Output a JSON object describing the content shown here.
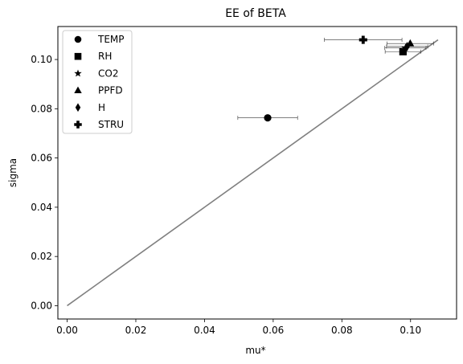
{
  "chart_data": {
    "type": "scatter",
    "title": "EE of BETA",
    "xlabel": "mu*",
    "ylabel": "sigma",
    "xlim": [
      -0.0027,
      0.1134
    ],
    "ylim": [
      -0.0054,
      0.1134
    ],
    "xticks": [
      0.0,
      0.02,
      0.04,
      0.06,
      0.08,
      0.1
    ],
    "xtick_labels": [
      "0.00",
      "0.02",
      "0.04",
      "0.06",
      "0.08",
      "0.10"
    ],
    "yticks": [
      0.0,
      0.02,
      0.04,
      0.06,
      0.08,
      0.1
    ],
    "ytick_labels": [
      "0.00",
      "0.02",
      "0.04",
      "0.06",
      "0.08",
      "0.10"
    ],
    "grid": false,
    "legend_position": "top-left",
    "reference_line": {
      "x": [
        0.0,
        0.108
      ],
      "y": [
        0.0,
        0.108
      ],
      "color": "#808080"
    },
    "series": [
      {
        "name": "TEMP",
        "marker": "circle",
        "x": 0.0584,
        "y": 0.0763,
        "xerr": 0.0087
      },
      {
        "name": "RH",
        "marker": "square",
        "x": 0.0978,
        "y": 0.1032,
        "xerr": 0.0052
      },
      {
        "name": "CO2",
        "marker": "star",
        "x": 0.0985,
        "y": 0.1047,
        "xerr": 0.006
      },
      {
        "name": "PPFD",
        "marker": "triangle",
        "x": 0.0999,
        "y": 0.1065,
        "xerr": 0.0068
      },
      {
        "name": "H",
        "marker": "diamond",
        "x": 0.099,
        "y": 0.1053,
        "xerr": 0.006
      },
      {
        "name": "STRU",
        "marker": "plus",
        "x": 0.0862,
        "y": 0.108,
        "xerr": 0.0113
      }
    ]
  }
}
